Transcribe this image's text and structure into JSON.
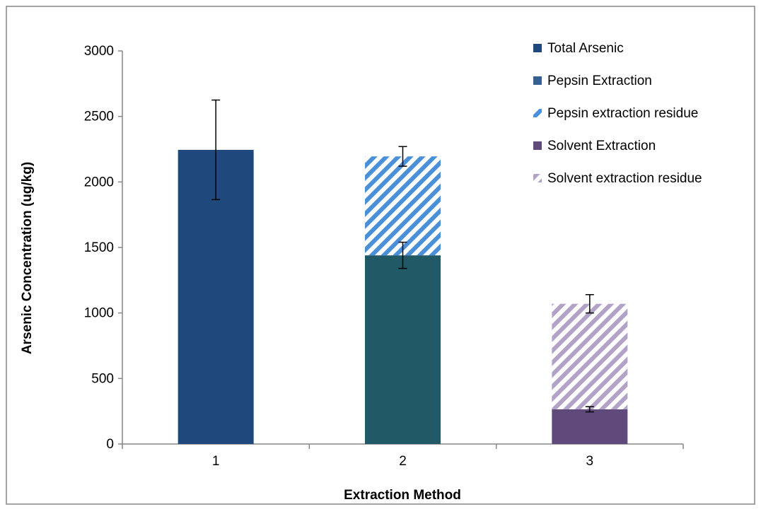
{
  "chart_data": {
    "type": "bar",
    "stacked": true,
    "categories": [
      "1",
      "2",
      "3"
    ],
    "xlabel": "Extraction Method",
    "ylabel": "Arsenic Concentration (ug/kg)",
    "ylim": [
      0,
      3000
    ],
    "yticks": [
      "0",
      "500",
      "1000",
      "1500",
      "2000",
      "2500",
      "3000"
    ],
    "grid": false,
    "legend_position": "top-right",
    "series": [
      {
        "name": "Total Arsenic",
        "values": [
          2245,
          null,
          null
        ],
        "errors": [
          380,
          null,
          null
        ],
        "color": "#1F497D",
        "pattern": "solid"
      },
      {
        "name": "Pepsin Extraction",
        "values": [
          null,
          1440,
          null
        ],
        "errors": [
          null,
          100,
          null
        ],
        "color": "#215967",
        "legend_color": "#366092",
        "pattern": "solid"
      },
      {
        "name": "Pepsin extraction residue",
        "values": [
          null,
          755,
          null
        ],
        "errors": [
          null,
          75,
          null
        ],
        "color": "#4A90D9",
        "pattern": "hatch"
      },
      {
        "name": "Solvent Extraction",
        "values": [
          null,
          null,
          265
        ],
        "errors": [
          null,
          null,
          20
        ],
        "color": "#604A7B",
        "pattern": "solid"
      },
      {
        "name": "Solvent extraction residue",
        "values": [
          null,
          null,
          805
        ],
        "errors": [
          null,
          null,
          70
        ],
        "color": "#B3A2C7",
        "pattern": "hatch"
      }
    ]
  }
}
